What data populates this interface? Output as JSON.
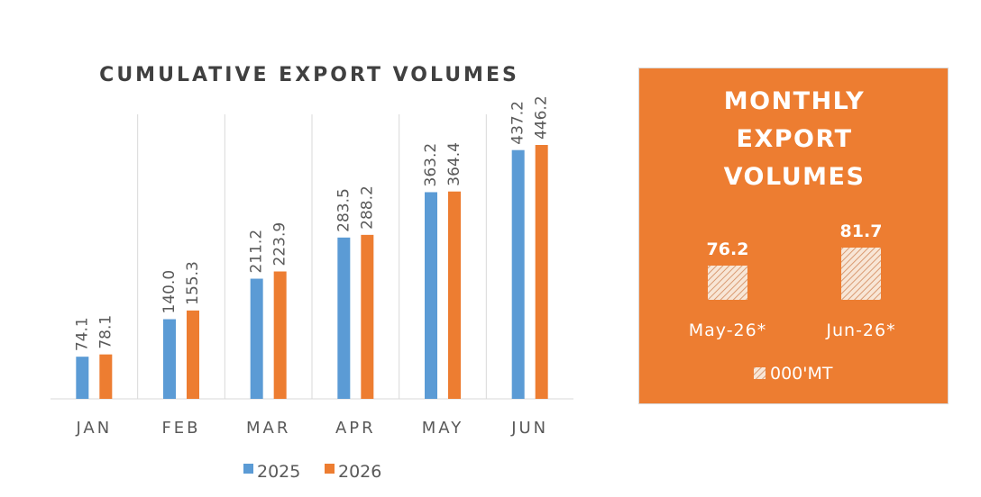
{
  "chart_data": [
    {
      "type": "bar",
      "title": "CUMULATIVE EXPORT VOLUMES",
      "categories": [
        "JAN",
        "FEB",
        "MAR",
        "APR",
        "MAY",
        "JUN"
      ],
      "series": [
        {
          "name": "2025",
          "values": [
            74.1,
            140.0,
            211.2,
            283.5,
            363.2,
            437.2
          ],
          "labels": [
            "74.1",
            "140.0",
            "211.2",
            "283.5",
            "363.2",
            "437.2"
          ],
          "color": "#5B9BD5"
        },
        {
          "name": "2026",
          "values": [
            78.1,
            155.3,
            223.9,
            288.2,
            364.4,
            446.2
          ],
          "labels": [
            "78.1",
            "155.3",
            "223.9",
            "288.2",
            "364.4",
            "446.2"
          ],
          "color": "#ED7D31"
        }
      ],
      "ylim": [
        0,
        500
      ],
      "legend": "bottom",
      "grid": "vertical separators"
    },
    {
      "type": "bar",
      "title_lines": [
        "MONTHLY",
        "EXPORT",
        "VOLUMES"
      ],
      "categories": [
        "May-26*",
        "Jun-26*"
      ],
      "series": [
        {
          "name": "000'MT",
          "values": [
            76.2,
            81.7
          ],
          "labels": [
            "76.2",
            "81.7"
          ],
          "pattern": "diagonal-hatch"
        }
      ],
      "background": "#ED7D31",
      "legend": "bottom"
    }
  ]
}
